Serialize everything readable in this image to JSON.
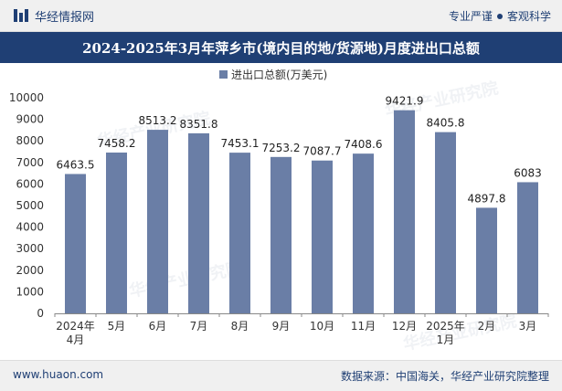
{
  "header": {
    "brand_name": "华经情报网",
    "slogan_left": "专业严谨",
    "slogan_right": "客观科学"
  },
  "watermark": "华经产业研究院",
  "footer": {
    "website": "www.huaon.com",
    "source": "数据来源：中国海关，华经产业研究院整理"
  },
  "colors": {
    "bar": "#6a7ea6",
    "header_bg": "#1f3f74",
    "text_dark": "#1f3f74"
  },
  "chart_data": {
    "type": "bar",
    "title": "2024-2025年3月年萍乡市(境内目的地/货源地)月度进出口总额",
    "legend": "进出口总额(万美元)",
    "legend_position": "top-center",
    "categories": [
      [
        "2024年",
        "4月"
      ],
      [
        "5月"
      ],
      [
        "6月"
      ],
      [
        "7月"
      ],
      [
        "8月"
      ],
      [
        "9月"
      ],
      [
        "10月"
      ],
      [
        "11月"
      ],
      [
        "12月"
      ],
      [
        "2025年",
        "1月"
      ],
      [
        "2月"
      ],
      [
        "3月"
      ]
    ],
    "values": [
      6463.5,
      7458.2,
      8513.2,
      8351.8,
      7453.1,
      7253.2,
      7087.7,
      7408.6,
      9421.9,
      8405.8,
      4897.8,
      6083
    ],
    "value_labels": [
      "6463.5",
      "7458.2",
      "8513.2",
      "8351.8",
      "7453.1",
      "7253.2",
      "7087.7",
      "7408.6",
      "9421.9",
      "8405.8",
      "4897.8",
      "6083"
    ],
    "ylim": [
      0,
      10000
    ],
    "yticks": [
      0,
      1000,
      2000,
      3000,
      4000,
      5000,
      6000,
      7000,
      8000,
      9000,
      10000
    ],
    "xlabel": "",
    "ylabel": "",
    "grid": false
  }
}
